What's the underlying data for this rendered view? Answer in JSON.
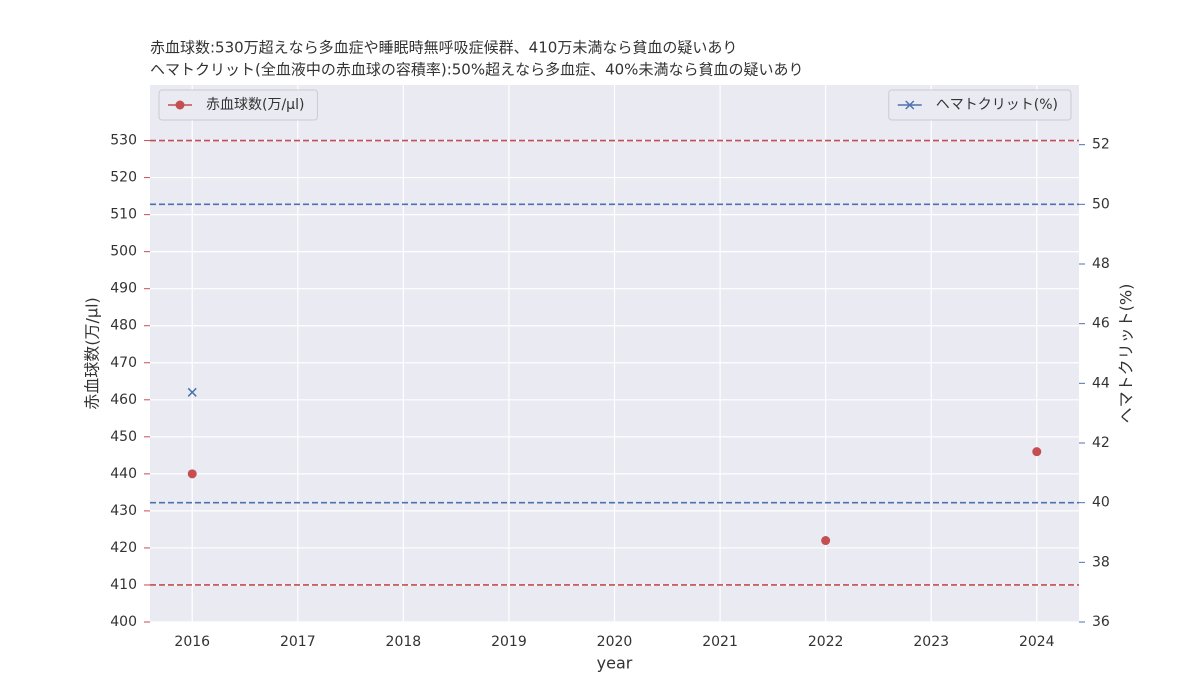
{
  "chart_data": {
    "type": "line",
    "title_lines": [
      "赤血球数:530万超えなら多血症や睡眠時無呼吸症候群、410万未満なら貧血の疑いあり",
      "ヘマトクリット(全血液中の赤血球の容積率):50%超えなら多血症、40%未満なら貧血の疑いあり"
    ],
    "xlabel": "year",
    "ylabel": "赤血球数(万/μl)",
    "y2label": "ヘマトクリット(%)",
    "x": [
      2016,
      2017,
      2018,
      2019,
      2020,
      2021,
      2022,
      2023,
      2024
    ],
    "xlim": [
      2015.6,
      2024.4
    ],
    "xticks": [
      2016,
      2017,
      2018,
      2019,
      2020,
      2021,
      2022,
      2023,
      2024
    ],
    "ylim": [
      400,
      545
    ],
    "yticks": [
      400,
      410,
      420,
      430,
      440,
      450,
      460,
      470,
      480,
      490,
      500,
      510,
      520,
      530
    ],
    "y2lim": [
      36,
      54
    ],
    "y2ticks": [
      36,
      38,
      40,
      42,
      44,
      46,
      48,
      50,
      52
    ],
    "grid": true,
    "series": [
      {
        "name": "赤血球数(万/μl)",
        "color": "#c44e52",
        "marker": "o",
        "legend": "upper left",
        "values": [
          440,
          null,
          null,
          null,
          null,
          null,
          422,
          null,
          446
        ]
      },
      {
        "name": "ヘマトクリット(%)",
        "color": "#4c72b0",
        "marker": "x",
        "axis": "y2",
        "legend": "upper right",
        "values": [
          43.7,
          null,
          null,
          null,
          null,
          null,
          null,
          null,
          null
        ]
      }
    ],
    "reference_lines": [
      {
        "axis": "y",
        "value": 530,
        "color": "#c44e52"
      },
      {
        "axis": "y",
        "value": 410,
        "color": "#c44e52"
      },
      {
        "axis": "y2",
        "value": 50,
        "color": "#4c72b0"
      },
      {
        "axis": "y2",
        "value": 40,
        "color": "#4c72b0"
      }
    ]
  }
}
